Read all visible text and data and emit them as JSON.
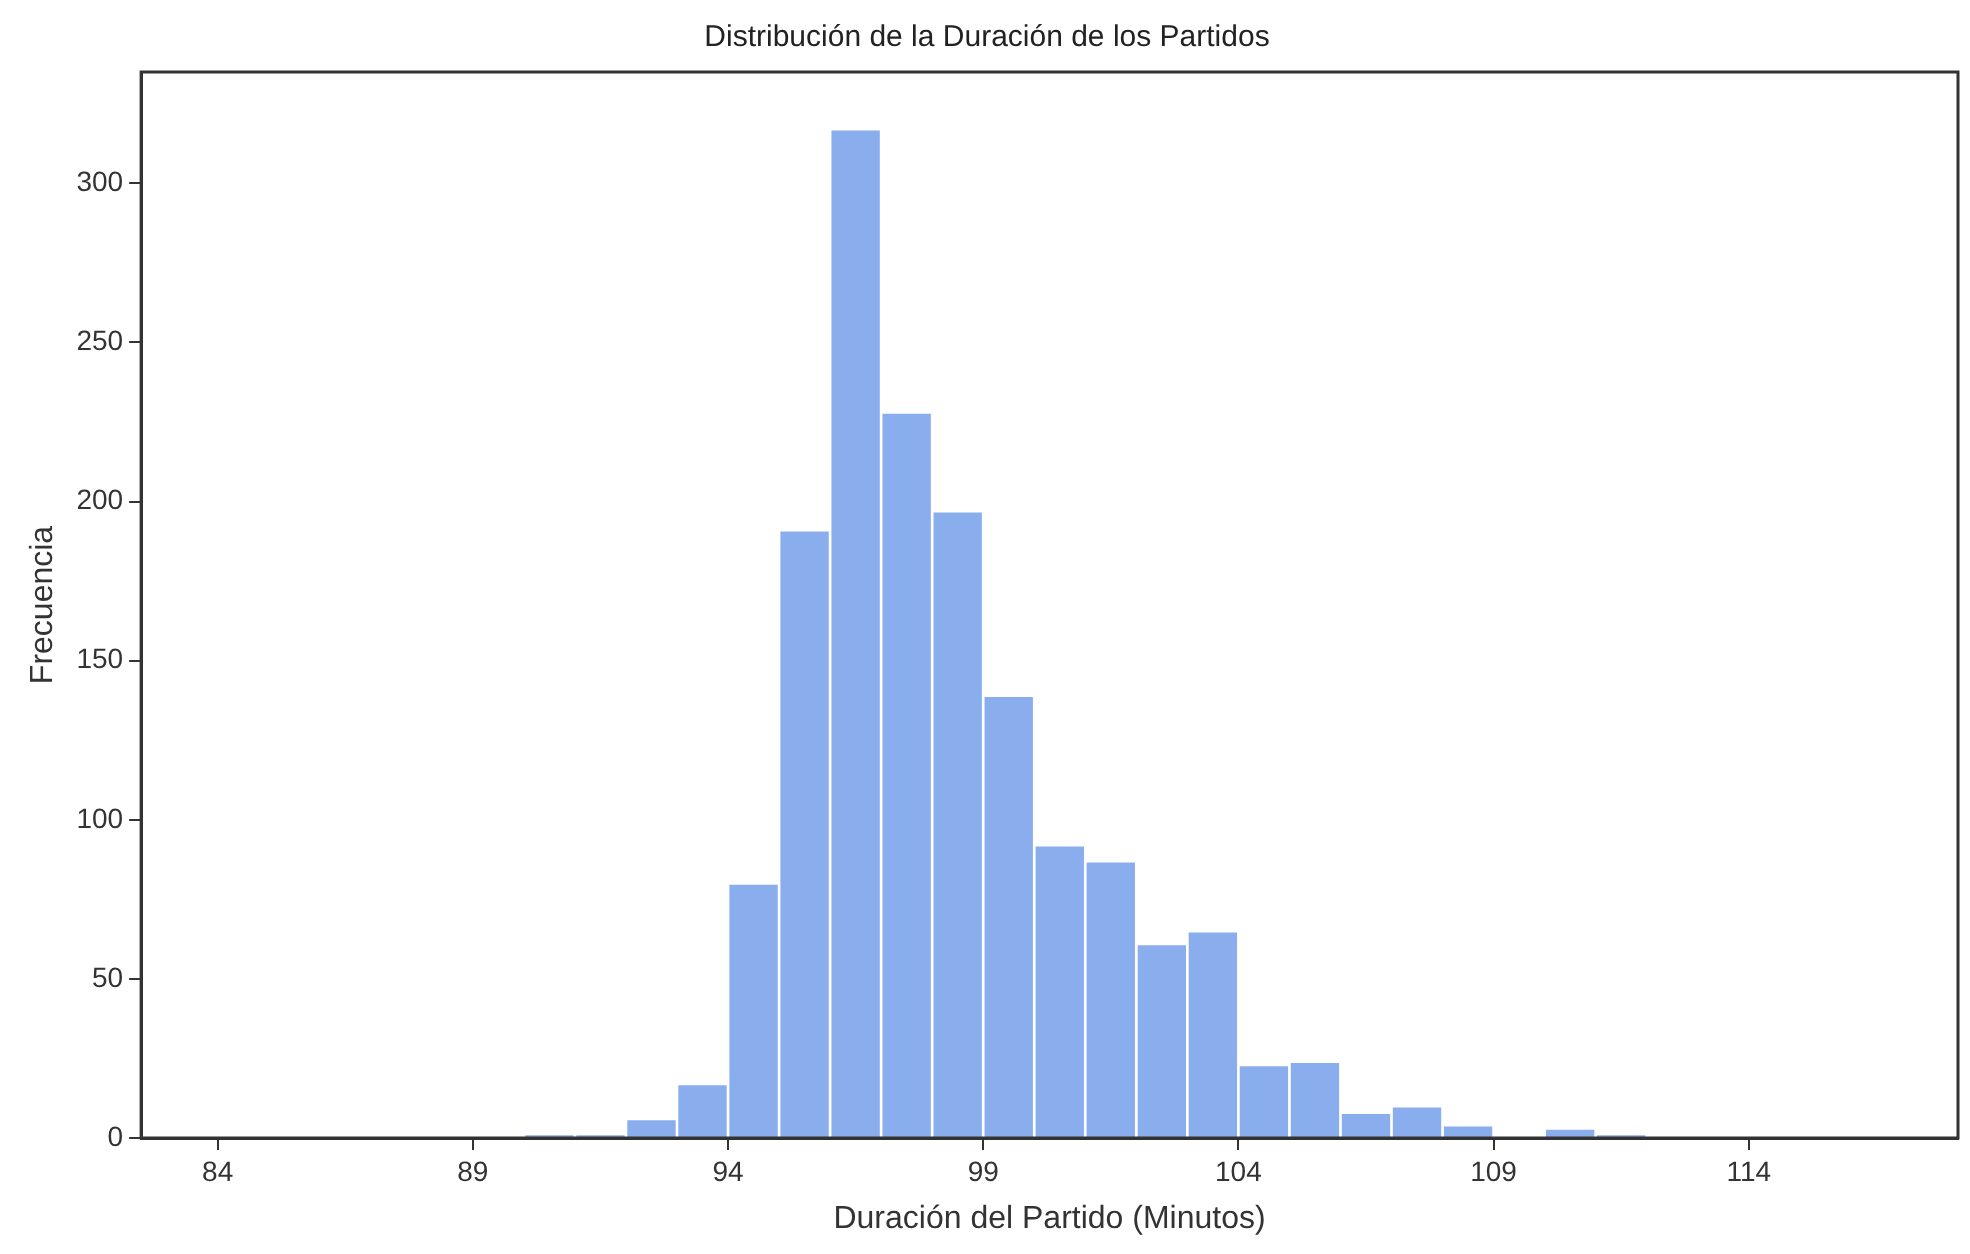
{
  "chart_data": {
    "type": "histogram",
    "title": "Distribución de la Duración de los Partidos",
    "xlabel": "Duración del Partido (Minutos)",
    "ylabel": "Frecuencia",
    "bins": [
      90,
      91,
      92,
      93,
      94,
      95,
      96,
      97,
      98,
      99,
      100,
      101,
      102,
      103,
      104,
      105,
      106,
      107,
      108,
      109,
      110,
      111,
      112
    ],
    "values": [
      1,
      1,
      6,
      17,
      80,
      191,
      317,
      228,
      197,
      139,
      92,
      87,
      61,
      65,
      23,
      24,
      8,
      10,
      4,
      0,
      3,
      1
    ],
    "color": "#8aadee",
    "xlim": [
      82.5,
      118.1
    ],
    "xticks": [
      84,
      89,
      94,
      99,
      104,
      109,
      114
    ],
    "ylim": [
      0,
      335
    ],
    "yticks": [
      0,
      50,
      100,
      150,
      200,
      250,
      300
    ],
    "grid": false,
    "legend": false
  }
}
